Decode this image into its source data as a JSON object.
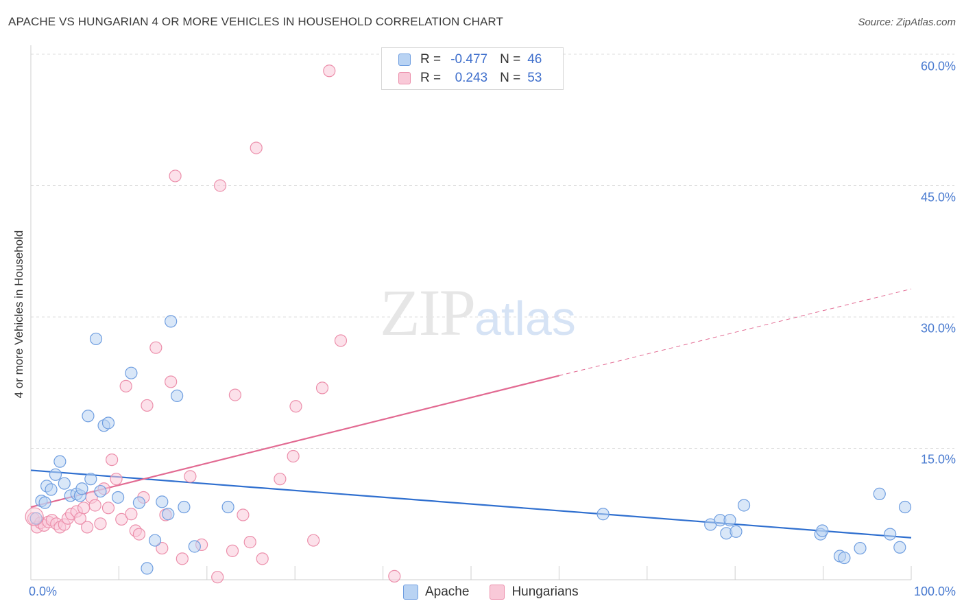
{
  "title": "APACHE VS HUNGARIAN 4 OR MORE VEHICLES IN HOUSEHOLD CORRELATION CHART",
  "source": "Source: ZipAtlas.com",
  "watermark": {
    "zip": "ZIP",
    "atlas": "atlas"
  },
  "colors": {
    "apache_fill": "#b9d3f3",
    "apache_stroke": "#6f9ee0",
    "apache_line": "#2f6fcf",
    "hungarian_fill": "#f9c9d8",
    "hungarian_stroke": "#ec8fab",
    "hungarian_line": "#e26a92"
  },
  "legend": {
    "rows": [
      {
        "r_label": "R =",
        "r_value": "-0.477",
        "n_label": "N =",
        "n_value": "46"
      },
      {
        "r_label": "R =",
        "r_value": "0.243",
        "n_label": "N =",
        "n_value": "53"
      }
    ]
  },
  "bottom_legend": [
    "Apache",
    "Hungarians"
  ],
  "chart_data": {
    "type": "scatter",
    "title": "APACHE VS HUNGARIAN 4 OR MORE VEHICLES IN HOUSEHOLD CORRELATION CHART",
    "xlabel": "",
    "ylabel": "4 or more Vehicles in Household",
    "xlim": [
      0,
      100
    ],
    "ylim": [
      0,
      62
    ],
    "y_ticks": [
      {
        "value": 60,
        "label": "60.0%"
      },
      {
        "value": 45,
        "label": "45.0%"
      },
      {
        "value": 30,
        "label": "30.0%"
      },
      {
        "value": 15,
        "label": "15.0%"
      }
    ],
    "x_tick_labels": {
      "min": "0.0%",
      "max": "100.0%"
    },
    "x_minor_ticks": [
      10,
      20,
      30,
      40,
      50,
      60,
      70,
      80,
      90,
      100
    ],
    "grid": true,
    "legend_position": "top-center",
    "series": [
      {
        "name": "Apache",
        "r": -0.477,
        "n": 46,
        "trend": {
          "x": [
            0,
            100
          ],
          "y": [
            12.5,
            4.8
          ]
        },
        "points": [
          [
            0.6,
            7.0
          ],
          [
            1.2,
            9.0
          ],
          [
            1.6,
            8.8
          ],
          [
            1.8,
            10.7
          ],
          [
            2.3,
            10.3
          ],
          [
            2.8,
            12.0
          ],
          [
            3.3,
            13.5
          ],
          [
            3.8,
            11.0
          ],
          [
            4.5,
            9.6
          ],
          [
            5.2,
            9.8
          ],
          [
            5.6,
            9.6
          ],
          [
            5.8,
            10.4
          ],
          [
            6.5,
            18.7
          ],
          [
            6.8,
            11.5
          ],
          [
            7.4,
            27.5
          ],
          [
            7.9,
            10.1
          ],
          [
            8.3,
            17.6
          ],
          [
            8.8,
            17.9
          ],
          [
            9.9,
            9.4
          ],
          [
            11.4,
            23.6
          ],
          [
            12.3,
            8.8
          ],
          [
            13.2,
            1.3
          ],
          [
            14.1,
            4.5
          ],
          [
            14.9,
            8.9
          ],
          [
            15.6,
            7.5
          ],
          [
            15.9,
            29.5
          ],
          [
            16.6,
            21.0
          ],
          [
            17.4,
            8.3
          ],
          [
            18.6,
            3.8
          ],
          [
            22.4,
            8.3
          ],
          [
            65.0,
            7.5
          ],
          [
            77.2,
            6.3
          ],
          [
            78.3,
            6.8
          ],
          [
            79.0,
            5.3
          ],
          [
            79.4,
            6.8
          ],
          [
            80.1,
            5.5
          ],
          [
            81.0,
            8.5
          ],
          [
            89.7,
            5.2
          ],
          [
            89.9,
            5.6
          ],
          [
            91.9,
            2.7
          ],
          [
            92.4,
            2.5
          ],
          [
            94.2,
            3.6
          ],
          [
            96.4,
            9.8
          ],
          [
            97.6,
            5.2
          ],
          [
            98.7,
            3.7
          ],
          [
            99.3,
            8.3
          ]
        ]
      },
      {
        "name": "Hungarians",
        "r": 0.243,
        "n": 53,
        "trend": {
          "x": [
            0,
            60
          ],
          "y": [
            8.3,
            23.3
          ]
        },
        "trend_extended": {
          "x": [
            60,
            100
          ],
          "y": [
            23.3,
            33.2
          ]
        },
        "points": [
          [
            0.3,
            7.0
          ],
          [
            0.7,
            6.0
          ],
          [
            1.1,
            6.5
          ],
          [
            1.5,
            6.2
          ],
          [
            2.0,
            6.6
          ],
          [
            2.4,
            6.8
          ],
          [
            2.9,
            6.4
          ],
          [
            3.3,
            6.0
          ],
          [
            3.8,
            6.3
          ],
          [
            4.2,
            7.0
          ],
          [
            4.6,
            7.5
          ],
          [
            5.2,
            7.8
          ],
          [
            5.6,
            7.0
          ],
          [
            6.0,
            8.2
          ],
          [
            6.4,
            6.0
          ],
          [
            6.9,
            9.4
          ],
          [
            7.3,
            8.5
          ],
          [
            7.9,
            6.4
          ],
          [
            8.3,
            10.4
          ],
          [
            8.8,
            8.2
          ],
          [
            9.2,
            13.7
          ],
          [
            9.7,
            11.5
          ],
          [
            10.3,
            6.9
          ],
          [
            10.8,
            22.1
          ],
          [
            11.4,
            7.5
          ],
          [
            11.9,
            5.6
          ],
          [
            12.3,
            5.2
          ],
          [
            12.8,
            9.4
          ],
          [
            13.2,
            19.9
          ],
          [
            14.2,
            26.5
          ],
          [
            14.9,
            3.6
          ],
          [
            15.3,
            7.4
          ],
          [
            15.9,
            22.6
          ],
          [
            16.4,
            46.1
          ],
          [
            17.2,
            2.4
          ],
          [
            18.1,
            11.8
          ],
          [
            19.4,
            4.0
          ],
          [
            21.2,
            0.3
          ],
          [
            21.5,
            45.0
          ],
          [
            22.9,
            3.3
          ],
          [
            23.2,
            21.1
          ],
          [
            24.1,
            7.4
          ],
          [
            24.9,
            4.3
          ],
          [
            25.6,
            49.3
          ],
          [
            26.3,
            2.4
          ],
          [
            28.3,
            11.5
          ],
          [
            29.8,
            14.1
          ],
          [
            30.1,
            19.8
          ],
          [
            32.1,
            4.5
          ],
          [
            33.1,
            21.9
          ],
          [
            33.9,
            58.1
          ],
          [
            35.2,
            27.3
          ],
          [
            41.3,
            0.4
          ]
        ]
      }
    ]
  }
}
